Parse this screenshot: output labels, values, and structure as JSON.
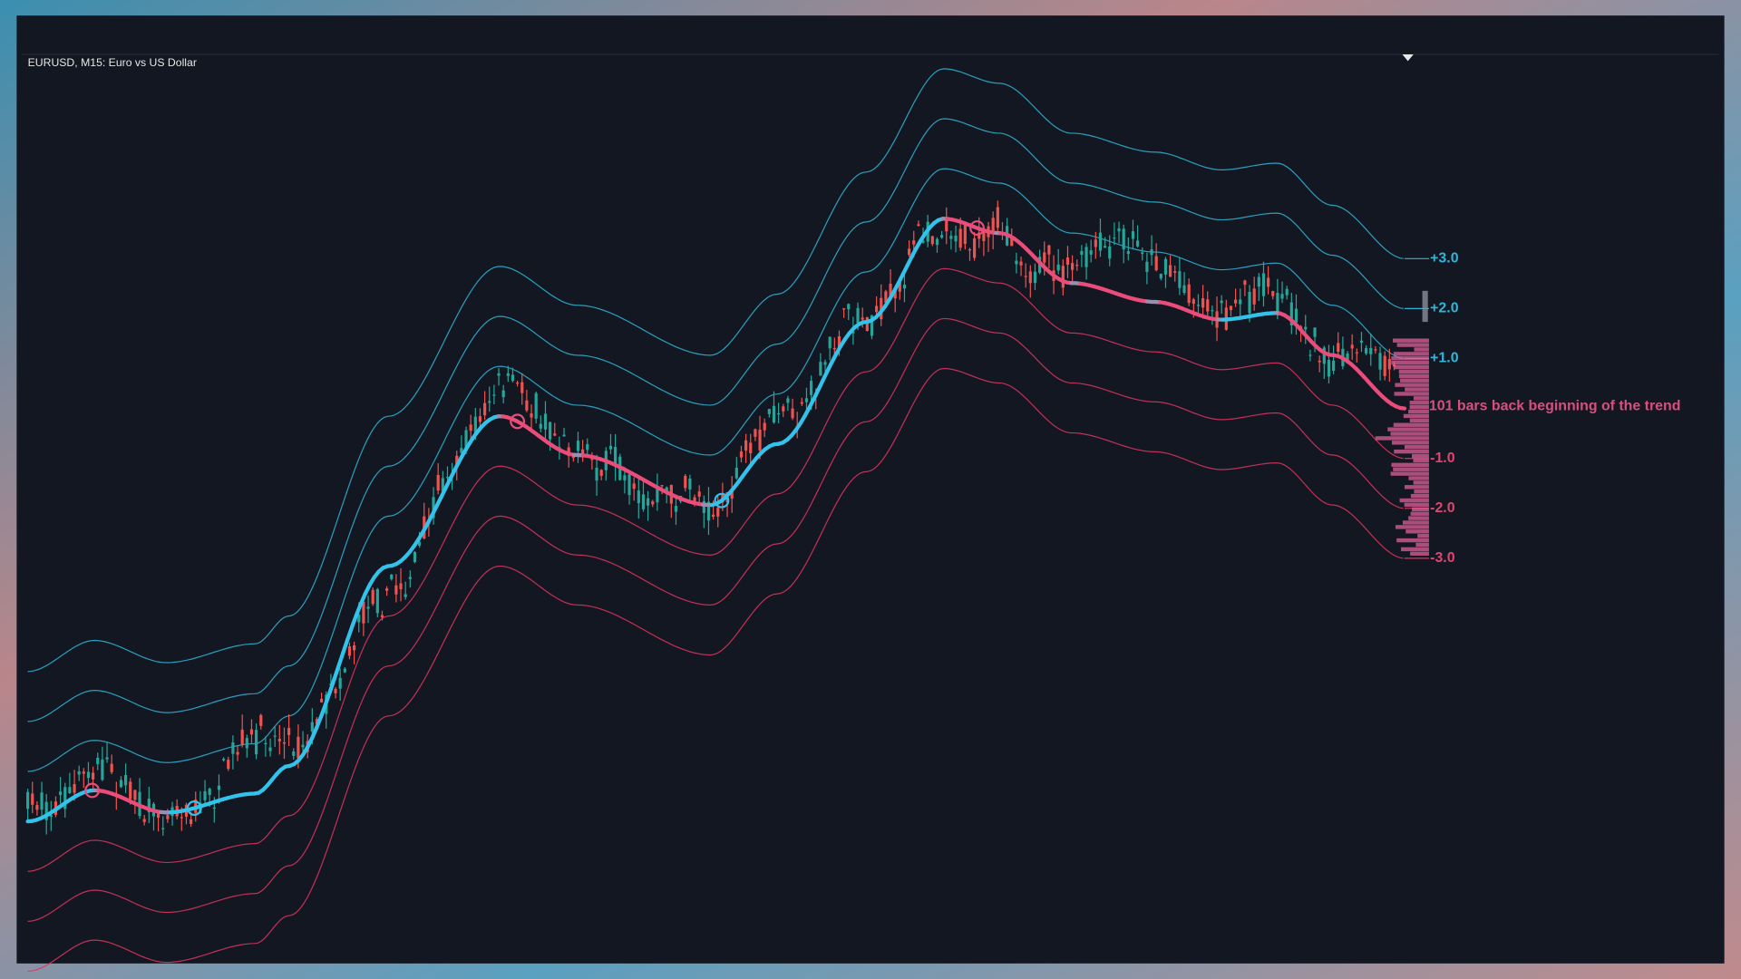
{
  "header": {
    "title": "EURUSD, M15:  Euro vs US Dollar"
  },
  "levels": [
    "+3.0",
    "+2.0",
    "+1.0",
    "-1.0",
    "-2.0",
    "-3.0"
  ],
  "annotation": "101 bars back beginning of the trend"
}
